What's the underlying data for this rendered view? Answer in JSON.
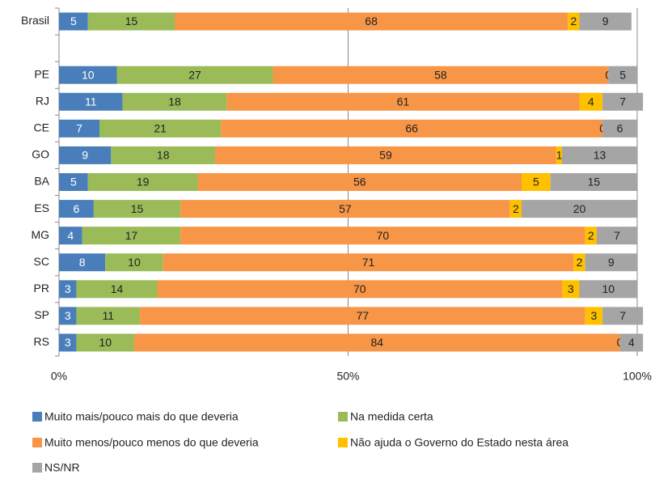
{
  "chart_data": {
    "type": "stacked-barh",
    "categories": [
      "Brasil",
      null,
      "PE",
      "RJ",
      "CE",
      "GO",
      "BA",
      "ES",
      "MG",
      "SC",
      "PR",
      "SP",
      "RS"
    ],
    "series": [
      {
        "name": "Muito mais/pouco mais do que deveria",
        "color": "#4a7ebb",
        "values": [
          5,
          null,
          10,
          11,
          7,
          9,
          5,
          6,
          4,
          8,
          3,
          3,
          3
        ]
      },
      {
        "name": "Na medida certa",
        "color": "#9bbb59",
        "values": [
          15,
          null,
          27,
          18,
          21,
          18,
          19,
          15,
          17,
          10,
          14,
          11,
          10
        ]
      },
      {
        "name": "Muito menos/pouco menos do que deveria",
        "color": "#f79646",
        "values": [
          68,
          null,
          58,
          61,
          66,
          59,
          56,
          57,
          70,
          71,
          70,
          77,
          84
        ]
      },
      {
        "name": "Não ajuda o Governo do Estado nesta área",
        "color": "#ffc000",
        "values": [
          2,
          null,
          0,
          4,
          0,
          1,
          5,
          2,
          2,
          2,
          3,
          3,
          0
        ]
      },
      {
        "name": "NS/NR",
        "color": "#a5a5a5",
        "values": [
          9,
          null,
          5,
          7,
          6,
          13,
          15,
          20,
          7,
          9,
          10,
          7,
          4
        ]
      }
    ],
    "xlim": [
      0,
      100
    ],
    "xticks": [
      {
        "value": 0,
        "label": "0%"
      },
      {
        "value": 50,
        "label": "50%"
      },
      {
        "value": 100,
        "label": "100%"
      }
    ],
    "grid": true,
    "legend": "bottom"
  }
}
